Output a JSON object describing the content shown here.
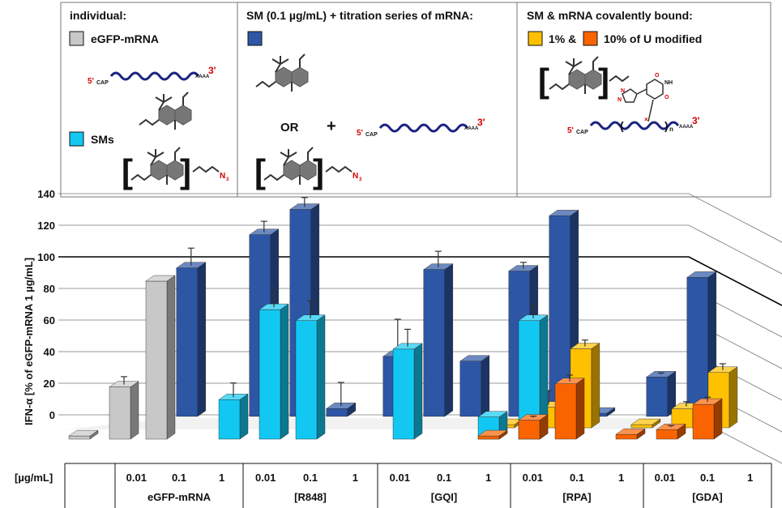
{
  "legend": {
    "panel1": {
      "title": "individual:",
      "egfp_label": "eGFP-mRNA",
      "sms_label": "SMs"
    },
    "panel2": {
      "title": "SM (0.1 µg/mL) + titration series of mRNA:",
      "or_text": "OR",
      "plus_text": "+"
    },
    "panel3": {
      "title": "SM & mRNA covalently bound:",
      "pct1_text": "1% &",
      "pct10_text": "10% of U modified"
    },
    "mrna": {
      "five_prime": "5'",
      "three_prime": "3'",
      "cap": "CAP",
      "tail": "AAAA"
    },
    "azide": "N",
    "azide_sub": "3",
    "index_n": "n",
    "triazole_n": "N",
    "nucleobase_o": "O",
    "nucleobase_nh": "NH"
  },
  "colors": {
    "light_gray": "#c8c8c8",
    "dark_gray": "#8a8a8a",
    "cyan": "#12c8f2",
    "blue": "#2d56a5",
    "navy": "#1c2d57",
    "yellow": "#ffc000",
    "orange": "#fa6400",
    "mrna_wave": "#1a237e"
  },
  "chart_data": {
    "type": "bar",
    "style": "3d-clustered",
    "title": "",
    "ylabel": "IFN-α [% of eGFP-mRNA 1 µg/mL]",
    "ylim": [
      0,
      140
    ],
    "yticks": [
      "0",
      "20",
      "40",
      "60",
      "80",
      "100",
      "120",
      "140"
    ],
    "xunit_label": "[µg/mL]",
    "categories": [
      "0.01",
      "0.1",
      "1"
    ],
    "groups": [
      "eGFP-mRNA",
      "[R848]",
      "[GQI]",
      "[RPA]",
      "[GDA]"
    ],
    "series": [
      {
        "name": "eGFP-mRNA",
        "group": "eGFP-mRNA",
        "values": [
          2,
          33,
          100
        ],
        "errors": [
          0,
          5,
          0
        ]
      },
      {
        "name": "SMs",
        "group": "[R848]",
        "values": [
          25,
          82,
          75
        ],
        "errors": [
          9,
          11,
          11
        ]
      },
      {
        "name": "SMs",
        "group": "[GQI]",
        "values": [
          0,
          57,
          0
        ],
        "errors": [
          0,
          11,
          0
        ]
      },
      {
        "name": "SMs",
        "group": "[RPA]",
        "values": [
          14,
          75,
          0
        ],
        "errors": [
          0,
          8,
          0
        ]
      },
      {
        "name": "SMs",
        "group": "[GDA]",
        "values": [
          0,
          0,
          0
        ],
        "errors": [
          0,
          0,
          0
        ]
      },
      {
        "name": "SM (0.1 µg/mL) + mRNA",
        "group": "eGFP-mRNA",
        "values": [
          0,
          0,
          94
        ],
        "errors": [
          0,
          0,
          11
        ]
      },
      {
        "name": "SM (0.1 µg/mL) + mRNA",
        "group": "[R848]",
        "values": [
          115,
          131,
          5
        ],
        "errors": [
          7,
          6,
          15
        ]
      },
      {
        "name": "SM (0.1 µg/mL) + mRNA",
        "group": "[GQI]",
        "values": [
          38,
          93,
          35
        ],
        "errors": [
          22,
          10,
          0
        ]
      },
      {
        "name": "SM (0.1 µg/mL) + mRNA",
        "group": "[RPA]",
        "values": [
          92,
          127,
          2
        ],
        "errors": [
          4,
          0,
          0
        ]
      },
      {
        "name": "SM (0.1 µg/mL) + mRNA",
        "group": "[GDA]",
        "values": [
          25,
          88,
          0
        ],
        "errors": [
          1,
          0,
          0
        ]
      },
      {
        "name": "1% of U modified",
        "group": "[RPA]",
        "values": [
          2,
          13,
          50
        ],
        "errors": [
          0,
          9,
          4
        ]
      },
      {
        "name": "1% of U modified",
        "group": "[GDA]",
        "values": [
          2,
          12,
          35
        ],
        "errors": [
          0,
          3,
          4
        ]
      },
      {
        "name": "10% of U modified",
        "group": "[RPA]",
        "values": [
          2,
          12,
          35
        ],
        "errors": [
          0,
          1,
          4
        ]
      },
      {
        "name": "10% of U modified",
        "group": "[GDA]",
        "values": [
          3,
          6,
          22
        ],
        "errors": [
          0,
          1,
          3
        ]
      }
    ]
  }
}
